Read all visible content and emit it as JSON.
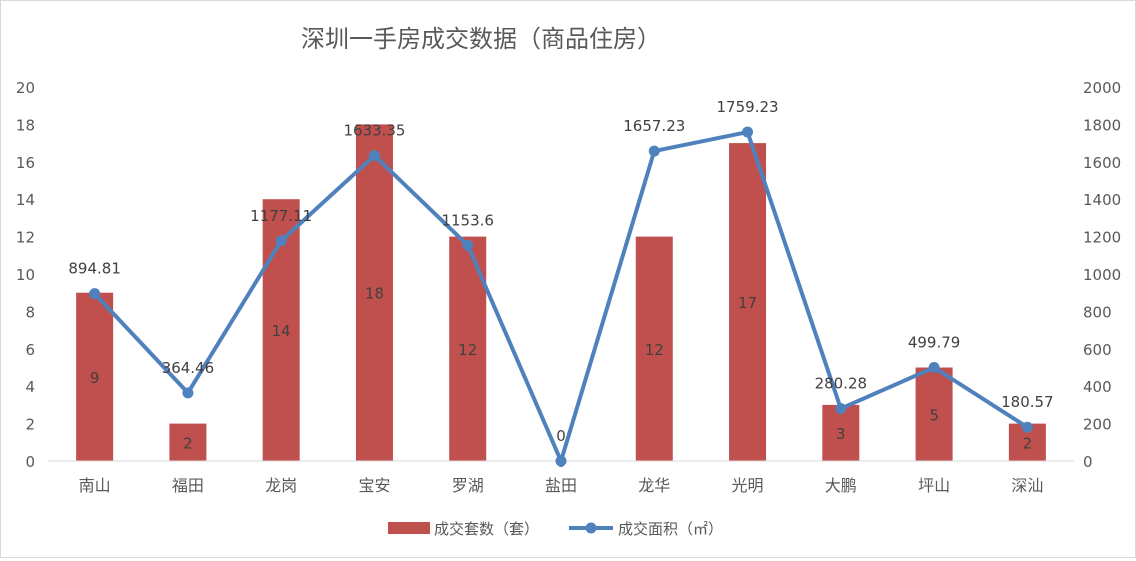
{
  "chart_data": {
    "type": "bar",
    "title": "深圳一手房成交数据（商品住房）",
    "categories": [
      "南山",
      "福田",
      "龙岗",
      "宝安",
      "罗湖",
      "盐田",
      "龙华",
      "光明",
      "大鹏",
      "坪山",
      "深汕"
    ],
    "series": [
      {
        "name": "成交套数（套）",
        "type": "bar",
        "axis": "left",
        "color": "#c0504d",
        "values": [
          9,
          2,
          14,
          18,
          12,
          0,
          12,
          17,
          3,
          5,
          2
        ],
        "labels": [
          "9",
          "2",
          "14",
          "18",
          "12",
          "0",
          "12",
          "17",
          "3",
          "5",
          "2"
        ]
      },
      {
        "name": "成交面积（㎡）",
        "type": "line",
        "axis": "right",
        "color": "#4f81bd",
        "values": [
          894.81,
          364.46,
          1177.11,
          1633.35,
          1153.6,
          0,
          1657.23,
          1759.23,
          280.28,
          499.79,
          180.57
        ],
        "labels": [
          "894.81",
          "364.46",
          "1177.11",
          "1633.35",
          "1153.6",
          "0",
          "1657.23",
          "1759.23",
          "280.28",
          "499.79",
          "180.57"
        ]
      }
    ],
    "y_left": {
      "ylim": [
        0,
        20
      ],
      "ticks": [
        "0",
        "2",
        "4",
        "6",
        "8",
        "10",
        "12",
        "14",
        "16",
        "18",
        "20"
      ]
    },
    "y_right": {
      "ylim": [
        0,
        2000
      ],
      "ticks": [
        "0",
        "200",
        "400",
        "600",
        "800",
        "1000",
        "1200",
        "1400",
        "1600",
        "1800",
        "2000"
      ]
    },
    "grid": false,
    "legend": "bottom"
  }
}
